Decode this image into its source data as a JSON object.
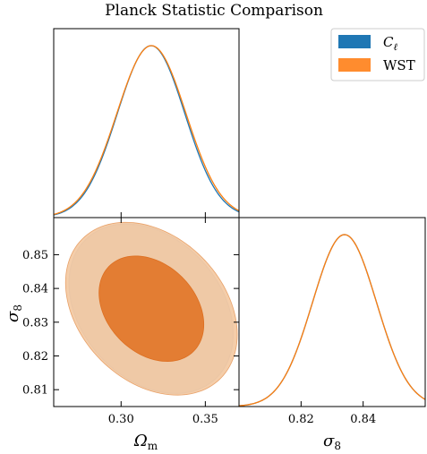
{
  "chart_data": {
    "type": "corner-plot",
    "title": "Planck Statistic Comparison",
    "parameters": [
      {
        "name": "omega_m",
        "label": "Ω",
        "label_sub": "m",
        "range": [
          0.26,
          0.37
        ],
        "ticks": [
          0.3,
          0.35
        ],
        "tick_labels": [
          "0.30",
          "0.35"
        ]
      },
      {
        "name": "sigma_8",
        "label": "σ",
        "label_sub": "8",
        "range": [
          0.805,
          0.861
        ],
        "ticks": [
          0.81,
          0.82,
          0.83,
          0.84,
          0.85
        ],
        "tick_labels": [
          "0.81",
          "0.82",
          "0.83",
          "0.84",
          "0.85"
        ],
        "diag_range": [
          0.8,
          0.86
        ],
        "diag_ticks": [
          0.82,
          0.84
        ],
        "diag_tick_labels": [
          "0.82",
          "0.84"
        ]
      }
    ],
    "series": [
      {
        "name": "Cℓ",
        "legend_label": "C",
        "legend_sub": "ℓ",
        "color": "#1f77b4",
        "omega_m": {
          "mean": 0.3178,
          "sigma": 0.02
        },
        "sigma_8": {
          "mean": 0.834,
          "sigma": 0.0103
        }
      },
      {
        "name": "WST",
        "legend_label": "WST",
        "legend_sub": "",
        "color": "#ff7f0e",
        "omega_m": {
          "mean": 0.318,
          "sigma": 0.0205
        },
        "sigma_8": {
          "mean": 0.834,
          "sigma": 0.0103
        }
      }
    ],
    "contours": {
      "correlation": -0.3,
      "levels": [
        0.68,
        0.95
      ],
      "fill_colors": {
        "inner": "#e2772a",
        "outer": "#f3c9a2"
      }
    },
    "legend_position": "top-right",
    "grid": false
  }
}
